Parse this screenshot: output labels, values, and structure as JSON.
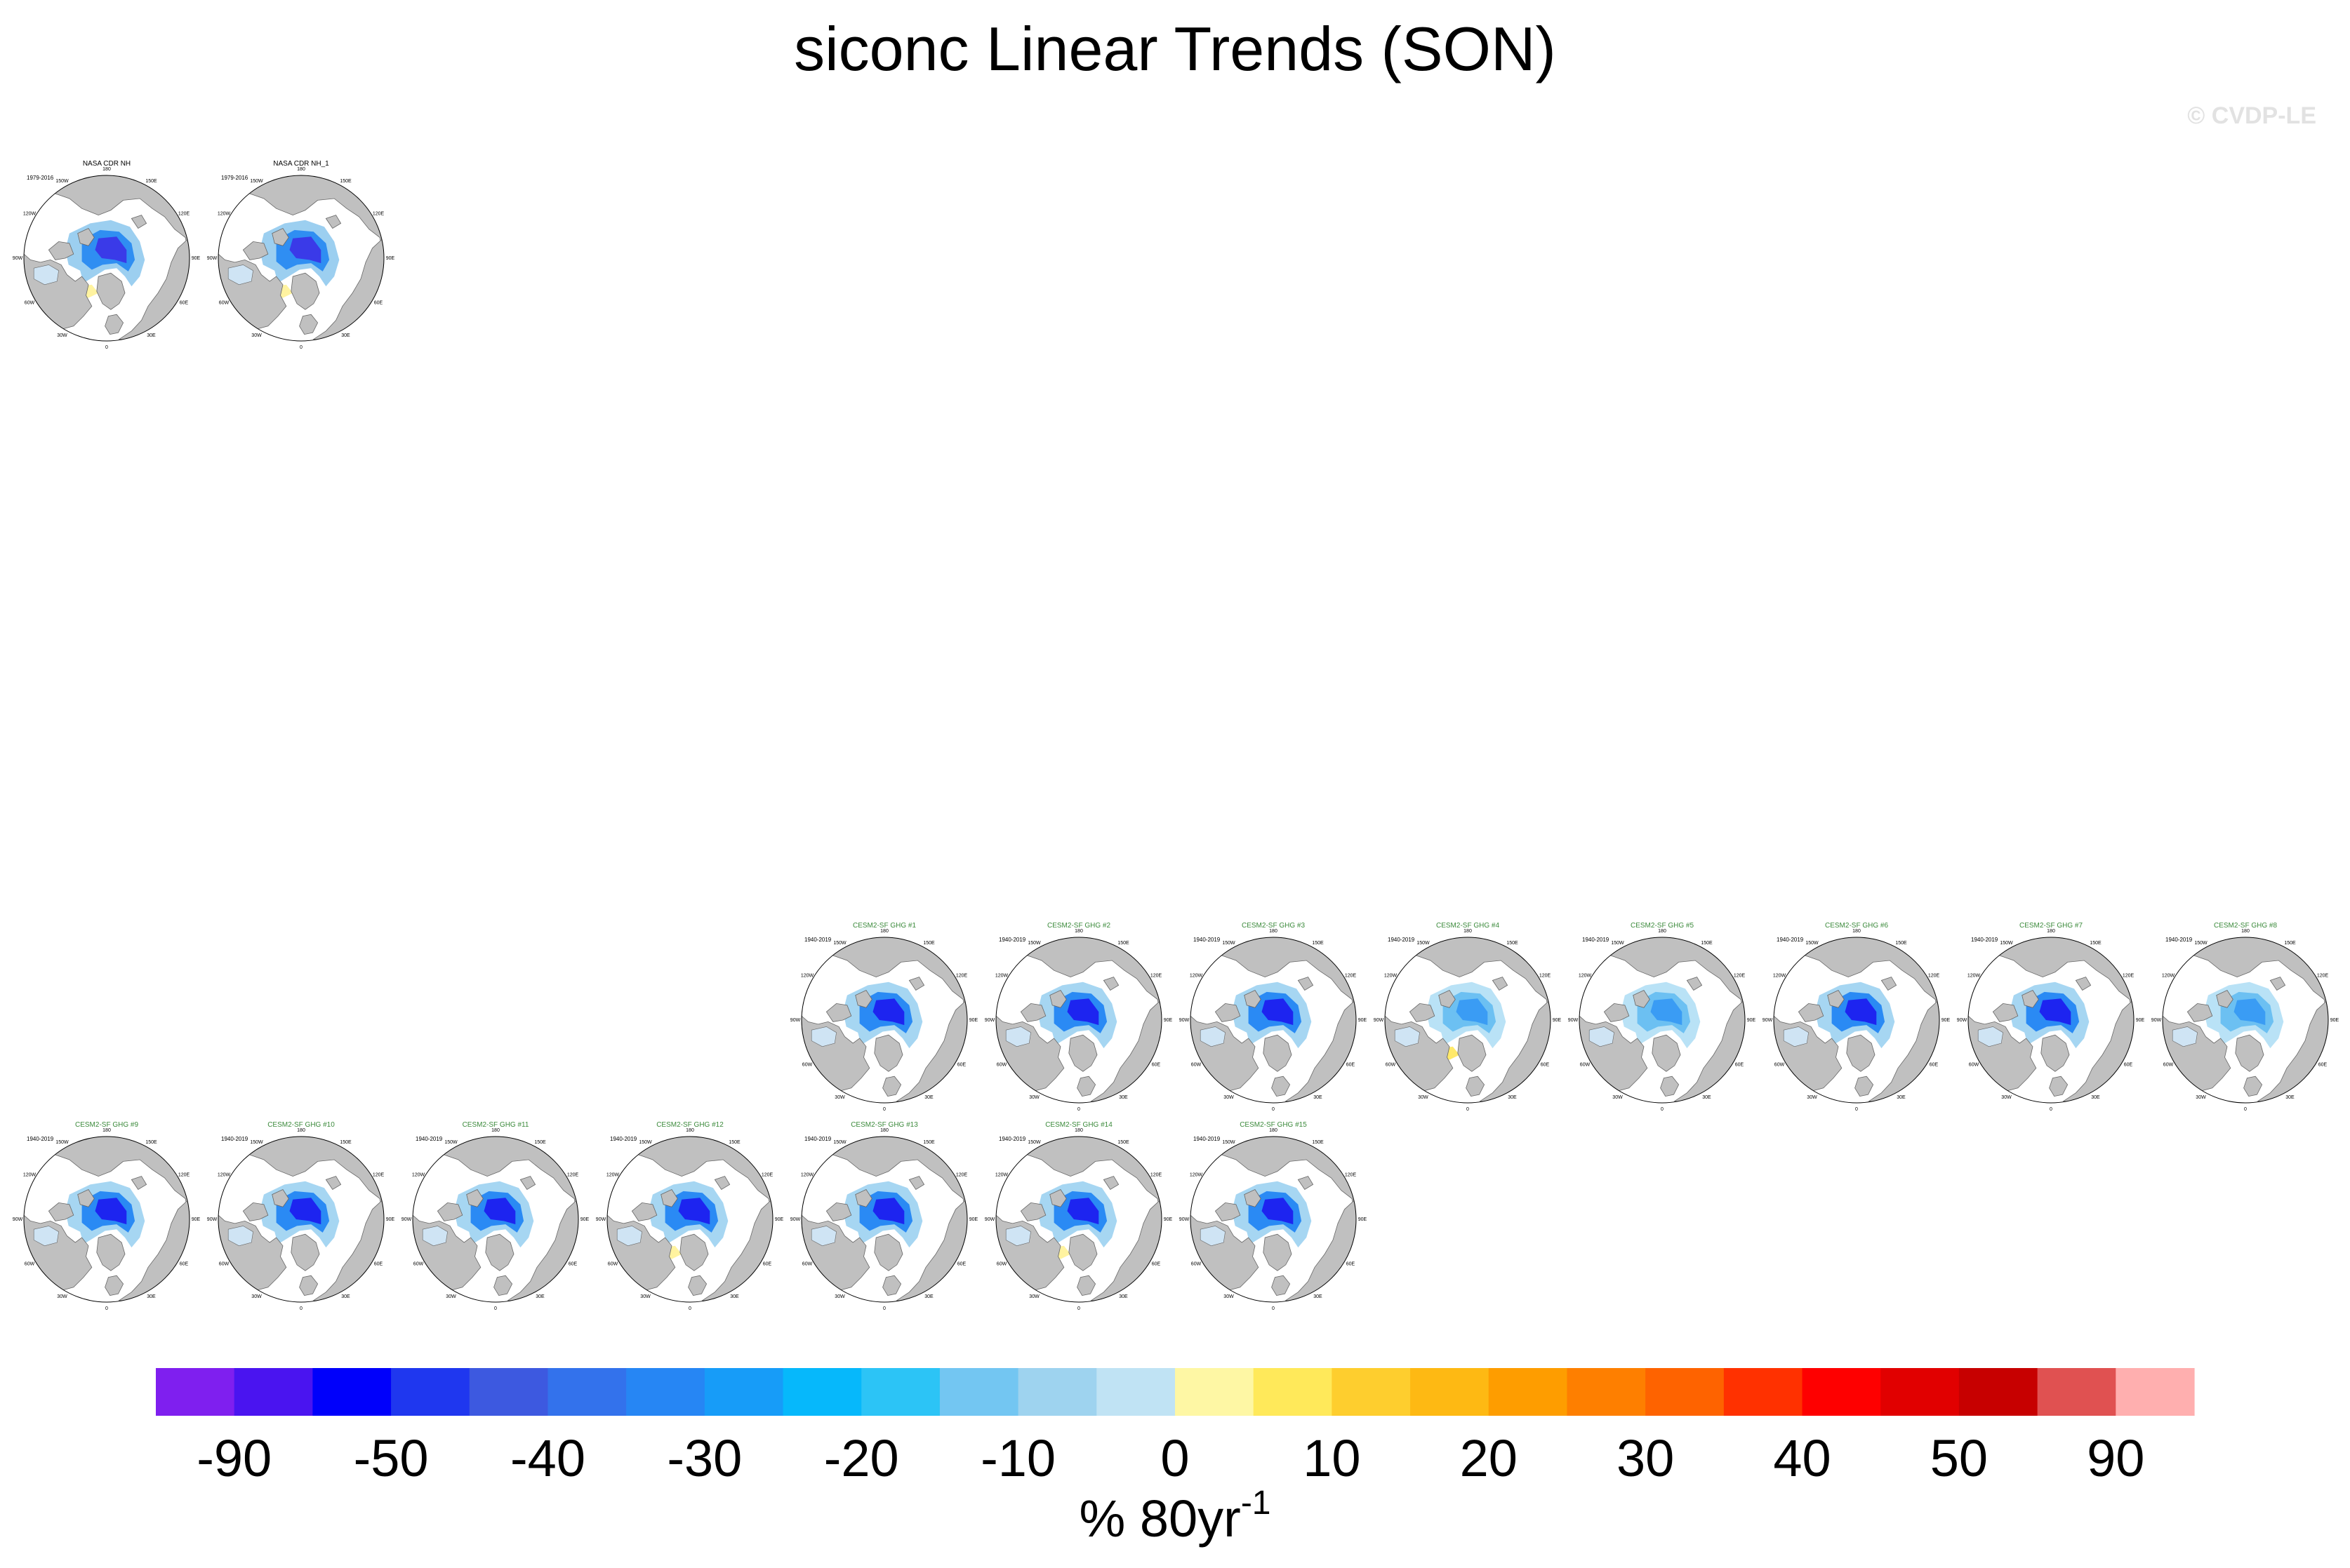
{
  "title": "siconc Linear Trends (SON)",
  "watermark": "© CVDP-LE",
  "colors": {
    "ocean": "#ffffff",
    "land": "#c0c0c0",
    "coast": "#666666",
    "model_title": "#3b8a3b",
    "obs_title": "#000000"
  },
  "lon_labels": [
    "180",
    "150E",
    "120E",
    "90E",
    "60E",
    "30E",
    "0",
    "30W",
    "60W",
    "90W",
    "120W",
    "150W"
  ],
  "panels": [
    {
      "title": "NASA CDR NH",
      "period": "1979-2016",
      "kind": "obs"
    },
    {
      "title": "NASA CDR NH_1",
      "period": "1979-2016",
      "kind": "obs"
    },
    {
      "title": "CESM2-SF GHG #1",
      "period": "1940-2019",
      "kind": "model"
    },
    {
      "title": "CESM2-SF GHG #2",
      "period": "1940-2019",
      "kind": "model"
    },
    {
      "title": "CESM2-SF GHG #3",
      "period": "1940-2019",
      "kind": "model"
    },
    {
      "title": "CESM2-SF GHG #4",
      "period": "1940-2019",
      "kind": "model"
    },
    {
      "title": "CESM2-SF GHG #5",
      "period": "1940-2019",
      "kind": "model"
    },
    {
      "title": "CESM2-SF GHG #6",
      "period": "1940-2019",
      "kind": "model"
    },
    {
      "title": "CESM2-SF GHG #7",
      "period": "1940-2019",
      "kind": "model"
    },
    {
      "title": "CESM2-SF GHG #8",
      "period": "1940-2019",
      "kind": "model"
    },
    {
      "title": "CESM2-SF GHG #9",
      "period": "1940-2019",
      "kind": "model"
    },
    {
      "title": "CESM2-SF GHG #10",
      "period": "1940-2019",
      "kind": "model"
    },
    {
      "title": "CESM2-SF GHG #11",
      "period": "1940-2019",
      "kind": "model"
    },
    {
      "title": "CESM2-SF GHG #12",
      "period": "1940-2019",
      "kind": "model"
    },
    {
      "title": "CESM2-SF GHG #13",
      "period": "1940-2019",
      "kind": "model"
    },
    {
      "title": "CESM2-SF GHG #14",
      "period": "1940-2019",
      "kind": "model"
    },
    {
      "title": "CESM2-SF GHG #15",
      "period": "1940-2019",
      "kind": "model"
    }
  ],
  "chart_data": {
    "type": "heatmap",
    "title": "siconc Linear Trends (SON)",
    "colorbar": {
      "units": "% 80yr",
      "units_exponent": "-1",
      "tick_labels": [
        "-90",
        "-50",
        "-40",
        "-30",
        "-20",
        "-10",
        "0",
        "10",
        "20",
        "30",
        "40",
        "50",
        "90"
      ],
      "colors": [
        "#7f1fef",
        "#4a14f0",
        "#0000fb",
        "#1f37ef",
        "#3d59e0",
        "#3372ec",
        "#2686f4",
        "#179cf8",
        "#06b8fb",
        "#2cc4f6",
        "#73c6f2",
        "#9ed3ef",
        "#c0e3f4",
        "#fef7a4",
        "#ffe95a",
        "#fece2e",
        "#feb913",
        "#fe9d00",
        "#fe7f00",
        "#fe6300",
        "#ff3100",
        "#fe0000",
        "#e10000",
        "#c70000",
        "#e05151",
        "#ffafaf"
      ]
    },
    "trend_levels": {
      "obs": {
        "core": "#3a3ae8",
        "mid": "#2f8ef2",
        "outer": "#9ccff0",
        "positive": "#fff3a0"
      },
      "model_1": {
        "core": "#1d24f0",
        "mid": "#2a8af4",
        "outer": "#a6d6f2",
        "positive": "#fff3a0"
      },
      "model_4": {
        "core": "#3a9cf4",
        "mid": "#6cc0f2",
        "outer": "#b9e2f6",
        "positive": "#ffe96a"
      }
    }
  }
}
